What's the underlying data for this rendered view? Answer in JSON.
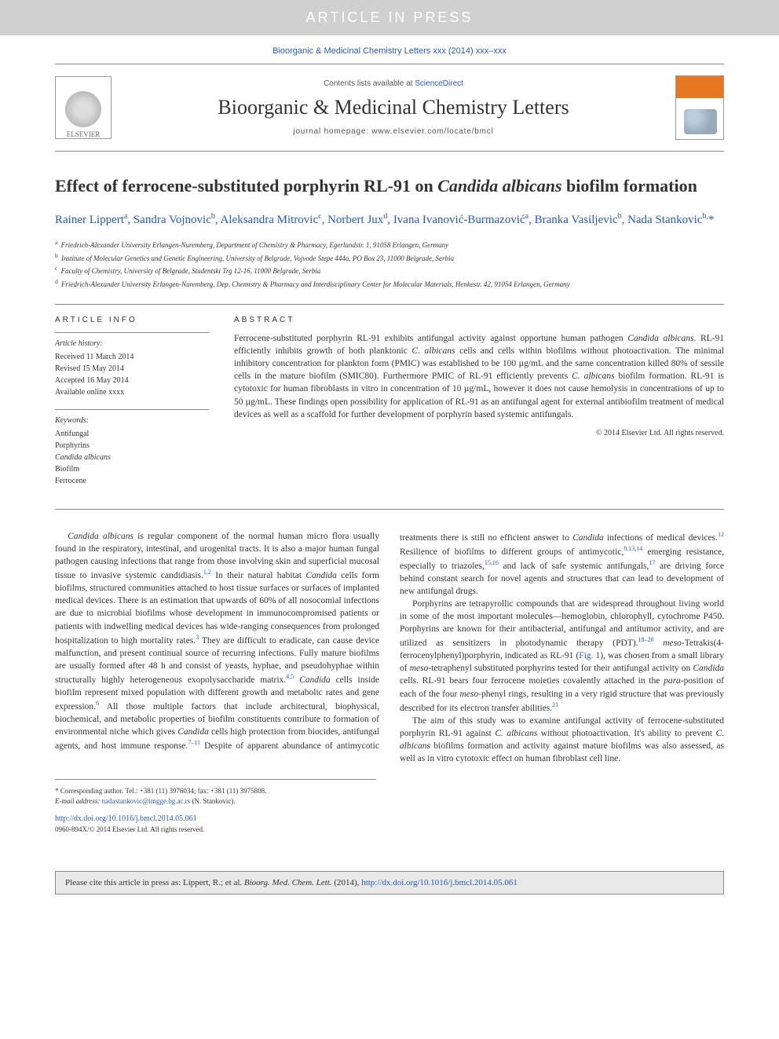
{
  "banner": {
    "text": "ARTICLE IN PRESS"
  },
  "citation_top": "Bioorganic & Medicinal Chemistry Letters xxx (2014) xxx–xxx",
  "header": {
    "elsevier_label": "ELSEVIER",
    "contents_prefix": "Contents lists available at ",
    "contents_link": "ScienceDirect",
    "journal_name": "Bioorganic & Medicinal Chemistry Letters",
    "homepage_prefix": "journal homepage: ",
    "homepage_url": "www.elsevier.com/locate/bmcl"
  },
  "title": {
    "pre": "Effect of ferrocene-substituted porphyrin RL-91 on ",
    "ital": "Candida albicans",
    "post": " biofilm formation"
  },
  "authors_html": "Rainer Lippert<sup>a</sup>, Sandra Vojnovic<sup>b</sup>, Aleksandra Mitrovic<sup>c</sup>, Norbert Jux<sup>d</sup>, Ivana Ivanović-Burmazović<sup>a</sup>, Branka Vasiljevic<sup>b</sup>, Nada Stankovic<sup>b,</sup><span class='corresponding-star'>*</span>",
  "affiliations": [
    {
      "sup": "a",
      "text": "Friedrich-Alexander University Erlangen-Nuremberg, Department of Chemistry & Pharmacy, Egerlandstr. 1, 91058 Erlangen, Germany"
    },
    {
      "sup": "b",
      "text": "Institute of Molecular Genetics and Genetic Engineering, University of Belgrade, Vojvode Stepe 444a, PO Box 23, 11000 Belgrade, Serbia"
    },
    {
      "sup": "c",
      "text": "Faculty of Chemistry, University of Belgrade, Studentski Trg 12-16, 11000 Belgrade, Serbia"
    },
    {
      "sup": "d",
      "text": "Friedrich-Alexander University Erlangen-Nuremberg, Dep. Chemistry & Pharmacy and Interdisciplinary Center for Molecular Materials, Henkestr. 42, 91054 Erlangen, Germany"
    }
  ],
  "article_info": {
    "heading": "ARTICLE INFO",
    "history_label": "Article history:",
    "history": [
      "Received 11 March 2014",
      "Revised 15 May 2014",
      "Accepted 16 May 2014",
      "Available online xxxx"
    ],
    "keywords_label": "Keywords:",
    "keywords": [
      "Antifungal",
      "Porphyrins",
      "Candida albicans",
      "Biofilm",
      "Ferrocene"
    ]
  },
  "abstract": {
    "heading": "ABSTRACT",
    "text": "Ferrocene-substituted porphyrin RL-91 exhibits antifungal activity against opportune human pathogen <span class='ital'>Candida albicans</span>. RL-91 efficiently inhibits growth of both planktonic <span class='ital'>C. albicans</span> cells and cells within biofilms without photoactivation. The minimal inhibitory concentration for plankton form (PMIC) was established to be 100 µg/mL and the same concentration killed 80% of sessile cells in the mature biofilm (SMIC80). Furthermore PMIC of RL-91 efficiently prevents <span class='ital'>C. albicans</span> biofilm formation. RL-91 is cytotoxic for human fibroblasts in vitro in concentration of 10 µg/mL, however it does not cause hemolysis in concentrations of up to 50 µg/mL. These findings open possibility for application of RL-91 as an antifungal agent for external antibiofilm treatment of medical devices as well as a scaffold for further development of porphyrin based systemic antifungals.",
    "copyright": "© 2014 Elsevier Ltd. All rights reserved."
  },
  "body_paragraphs": [
    "<span class='ital'>Candida albicans</span> is regular component of the normal human micro flora usually found in the respiratory, intestinal, and urogenital tracts. It is also a major human fungal pathogen causing infections that range from those involving skin and superficial mucosal tissue to invasive systemic candidiasis.<sup><a>1,2</a></sup> In their natural habitat <span class='ital'>Candida</span> cells form biofilms, structured communities attached to host tissue surfaces or surfaces of implanted medical devices. There is an estimation that upwards of 60% of all nosocomial infections are due to microbial biofilms whose development in immunocompromised patients or patients with indwelling medical devices has wide-ranging consequences from prolonged hospitalization to high mortality rates.<sup><a>3</a></sup> They are difficult to eradicate, can cause device malfunction, and present continual source of recurring infections. Fully mature biofilms are usually formed after 48 h and consist of yeasts, hyphae, and pseudohyphae within structurally highly heterogeneous exopolysaccharide matrix.<sup><a>4,5</a></sup> <span class='ital'>Candida</span> cells inside biofilm represent mixed population with different growth and metabolic rates and gene expression.<sup><a>6</a></sup> All those multiple factors that include architectural, biophysical, biochemical, and metabolic properties of biofilm constituents contribute to formation of environmental niche which gives <span class='ital'>Candida</span> cells high protection from biocides, antifungal agents, and host immune response.<sup><a>7–11</a></sup> Despite of apparent abundance of antimycotic treatments there is still no efficient answer to <span class='ital'>Candida</span> infections of medical devices.<sup><a>12</a></sup> Resilience of biofilms to different groups of antimycotic,<sup><a>8,13,14</a></sup> emerging resistance, especially to triazoles,<sup><a>15,16</a></sup> and lack of safe systemic antifungals,<sup><a>17</a></sup> are driving force behind constant search for novel agents and structures that can lead to development of new antifungal drugs.",
    "Porphyrins are tetrapyrollic compounds that are widespread throughout living world in some of the most important molecules—hemoglobin, chlorophyll, cytochrome P450. Porphyrins are known for their antibacterial, antifungal and antitumor activity, and are utilized as sensitizers in photodynamic therapy (PDT).<sup><a>18–20</a></sup> <span class='ital'>meso</span>-Tetrakis(4-ferrocenylphenyl)porphyrin, indicated as RL-91 (<a>Fig. 1</a>), was chosen from a small library of <span class='ital'>meso</span>-tetraphenyl substituted porphyrins tested for their antifungal activity on <span class='ital'>Candida</span> cells. RL-91 bears four ferrocene moieties covalently attached in the <span class='ital'>para</span>-position of each of the four <span class='ital'>meso</span>-phenyl rings, resulting in a very rigid structure that was previously described for its electron transfer abilities.<sup><a>21</a></sup>",
    "The aim of this study was to examine antifungal activity of ferrocene-substituted porphyrin RL-91 against <span class='ital'>C. albicans</span> without photoactivation. It's ability to prevent <span class='ital'>C. albicans</span> biofilms formation and activity against mature biofilms was also assessed, as well as in vitro cytotoxic effect on human fibroblast cell line."
  ],
  "footer": {
    "corr_label": "* Corresponding author. Tel.: +381 (11) 3976034; fax: +381 (11) 3975808.",
    "email_label": "E-mail address: ",
    "email": "nadastankovic@imgge.bg.ac.rs",
    "email_suffix": " (N. Stankovic).",
    "doi": "http://dx.doi.org/10.1016/j.bmcl.2014.05.061",
    "issn": "0960-894X/© 2014 Elsevier Ltd. All rights reserved."
  },
  "cite_box": {
    "prefix": "Please cite this article in press as: Lippert, R.; et al. ",
    "ital": "Bioorg. Med. Chem. Lett.",
    "mid": " (2014), ",
    "link": "http://dx.doi.org/10.1016/j.bmcl.2014.05.061"
  },
  "colors": {
    "banner_bg": "#d0d0d0",
    "banner_fg": "#ffffff",
    "link": "#2a5caa",
    "text": "#333333",
    "orange": "#e87722",
    "citebox_bg": "#e9e9e9",
    "rule": "#888888"
  }
}
